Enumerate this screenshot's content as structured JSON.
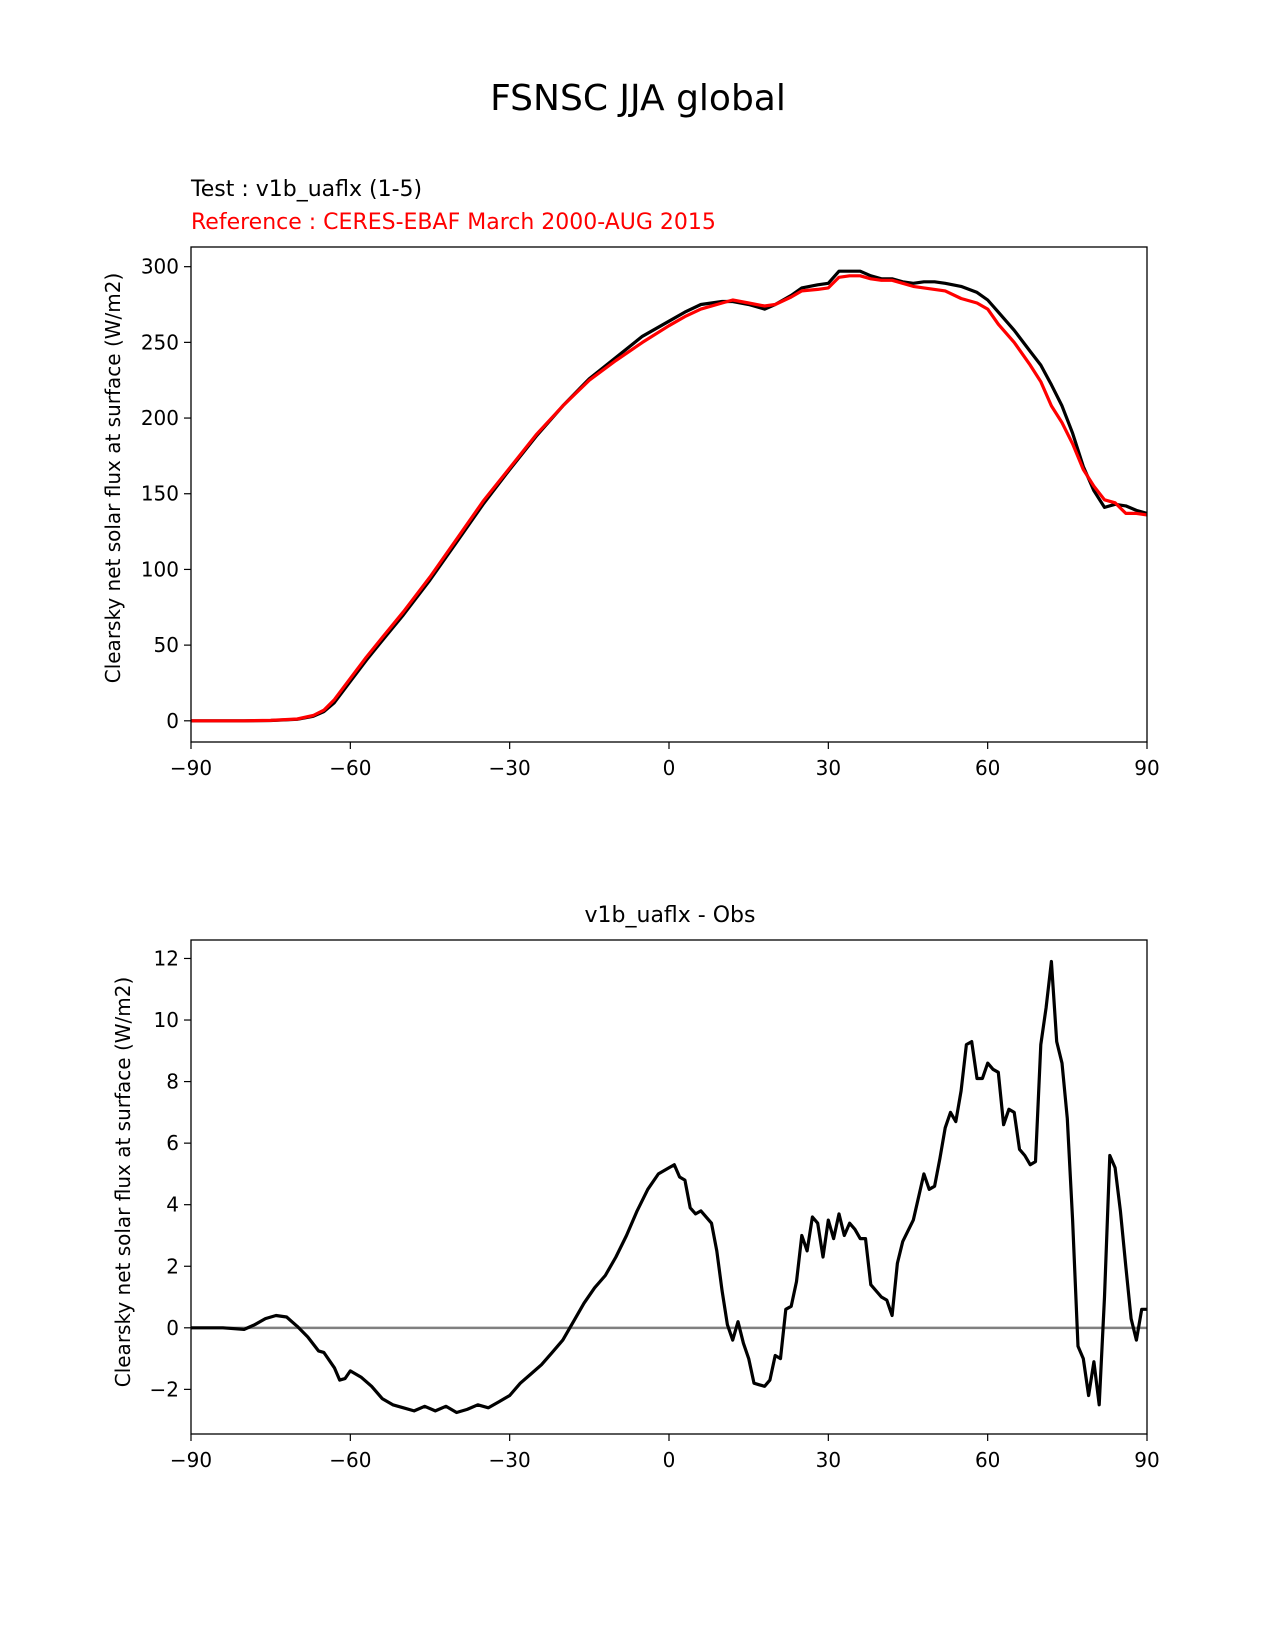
{
  "figure": {
    "title": "FSNSC JJA global"
  },
  "chart_data": [
    {
      "type": "line",
      "test_label": "Test : v1b_uaflx (1-5)",
      "reference_label": "Reference : CERES-EBAF March 2000-AUG 2015",
      "ylabel": "Clearsky net solar flux at surface (W/m2)",
      "xlabel": "",
      "xlim": [
        -90,
        90
      ],
      "ylim": [
        -14,
        313
      ],
      "xticks": [
        -90,
        -60,
        -30,
        0,
        30,
        60,
        90
      ],
      "yticks": [
        0,
        50,
        100,
        150,
        200,
        250,
        300
      ],
      "x": [
        -90,
        -80,
        -75,
        -70,
        -67,
        -65,
        -63,
        -60,
        -57,
        -54,
        -50,
        -45,
        -40,
        -35,
        -30,
        -25,
        -20,
        -15,
        -10,
        -5,
        0,
        3,
        6,
        10,
        12,
        15,
        18,
        20,
        23,
        25,
        28,
        30,
        32,
        34,
        36,
        38,
        40,
        42,
        44,
        46,
        48,
        50,
        52,
        55,
        58,
        60,
        62,
        65,
        68,
        70,
        72,
        74,
        76,
        78,
        80,
        82,
        84,
        86,
        88,
        90
      ],
      "series": [
        {
          "color": "#000000",
          "values": [
            0,
            0,
            0.2,
            1,
            3,
            6,
            12,
            26,
            40,
            53,
            70,
            93,
            118,
            143,
            166,
            188,
            208,
            226,
            240,
            254,
            264,
            270,
            275,
            277,
            277,
            275,
            272,
            275,
            281,
            286,
            288,
            289,
            297,
            297,
            297,
            294,
            292,
            292,
            290,
            289,
            290,
            290,
            289,
            287,
            283,
            278,
            270,
            258,
            244,
            235,
            222,
            208,
            190,
            168,
            152,
            141,
            143,
            142,
            139,
            137
          ]
        },
        {
          "color": "#ff0000",
          "values": [
            0,
            0,
            0.3,
            1.2,
            3.5,
            7,
            14,
            28,
            42,
            55,
            72,
            95,
            120,
            145,
            167,
            189,
            208,
            225,
            238,
            250,
            261,
            267,
            272,
            276,
            278,
            276,
            274,
            275,
            280,
            284,
            285,
            286,
            293,
            294,
            294,
            292,
            291,
            291,
            289,
            287,
            286,
            285,
            284,
            279,
            276,
            272,
            262,
            250,
            235,
            224,
            208,
            197,
            183,
            166,
            155,
            146,
            144,
            137,
            137,
            136
          ]
        }
      ]
    },
    {
      "type": "line",
      "title": "v1b_uaflx - Obs",
      "ylabel": "Clearsky net solar flux at surface (W/m2)",
      "xlabel": "",
      "xlim": [
        -90,
        90
      ],
      "ylim": [
        -3.45,
        12.6
      ],
      "xticks": [
        -90,
        -60,
        -30,
        0,
        30,
        60,
        90
      ],
      "yticks": [
        -2,
        0,
        2,
        4,
        6,
        8,
        10,
        12
      ],
      "zero_line_color": "#808080",
      "x": [
        -90,
        -84,
        -80,
        -78,
        -76,
        -74,
        -72,
        -71,
        -70,
        -68,
        -66,
        -65,
        -63,
        -62,
        -61,
        -60,
        -58,
        -56,
        -54,
        -52,
        -50,
        -48,
        -46,
        -44,
        -42,
        -40,
        -38,
        -36,
        -34,
        -32,
        -30,
        -28,
        -26,
        -24,
        -22,
        -20,
        -18,
        -16,
        -14,
        -12,
        -10,
        -8,
        -6,
        -4,
        -2,
        0,
        1,
        2,
        3,
        4,
        5,
        6,
        8,
        9,
        10,
        11,
        12,
        13,
        14,
        15,
        16,
        17,
        18,
        19,
        20,
        21,
        22,
        23,
        24,
        25,
        26,
        27,
        28,
        29,
        30,
        31,
        32,
        33,
        34,
        35,
        36,
        37,
        38,
        40,
        41,
        42,
        43,
        44,
        46,
        48,
        49,
        50,
        51,
        52,
        53,
        54,
        55,
        56,
        57,
        58,
        59,
        60,
        61,
        62,
        63,
        64,
        65,
        66,
        67,
        68,
        69,
        70,
        71,
        72,
        73,
        74,
        75,
        76,
        77,
        78,
        79,
        80,
        81,
        82,
        83,
        84,
        85,
        86,
        87,
        88,
        89,
        90
      ],
      "series": [
        {
          "color": "#000000",
          "values": [
            0,
            0,
            -0.05,
            0.1,
            0.3,
            0.4,
            0.35,
            0.2,
            0.05,
            -0.3,
            -0.75,
            -0.8,
            -1.3,
            -1.7,
            -1.65,
            -1.4,
            -1.6,
            -1.9,
            -2.3,
            -2.5,
            -2.6,
            -2.7,
            -2.55,
            -2.7,
            -2.55,
            -2.75,
            -2.65,
            -2.5,
            -2.6,
            -2.4,
            -2.2,
            -1.8,
            -1.5,
            -1.2,
            -0.8,
            -0.4,
            0.2,
            0.8,
            1.3,
            1.7,
            2.3,
            3.0,
            3.8,
            4.5,
            5.0,
            5.2,
            5.3,
            4.9,
            4.8,
            3.9,
            3.7,
            3.8,
            3.4,
            2.5,
            1.2,
            0.1,
            -0.4,
            0.2,
            -0.5,
            -1.0,
            -1.8,
            -1.85,
            -1.9,
            -1.7,
            -0.9,
            -1.0,
            0.6,
            0.7,
            1.5,
            3.0,
            2.5,
            3.6,
            3.4,
            2.3,
            3.5,
            2.9,
            3.7,
            3.0,
            3.4,
            3.2,
            2.9,
            2.9,
            1.4,
            1.0,
            0.9,
            0.4,
            2.1,
            2.8,
            3.5,
            5.0,
            4.5,
            4.6,
            5.5,
            6.5,
            7.0,
            6.7,
            7.7,
            9.2,
            9.3,
            8.1,
            8.1,
            8.6,
            8.4,
            8.3,
            6.6,
            7.1,
            7.0,
            5.8,
            5.6,
            5.3,
            5.4,
            9.2,
            10.4,
            11.9,
            9.3,
            8.6,
            6.8,
            3.5,
            -0.6,
            -1.0,
            -2.2,
            -1.1,
            -2.5,
            1.0,
            5.6,
            5.2,
            3.8,
            2.0,
            0.3,
            -0.4,
            0.6,
            0.6
          ]
        }
      ]
    }
  ]
}
